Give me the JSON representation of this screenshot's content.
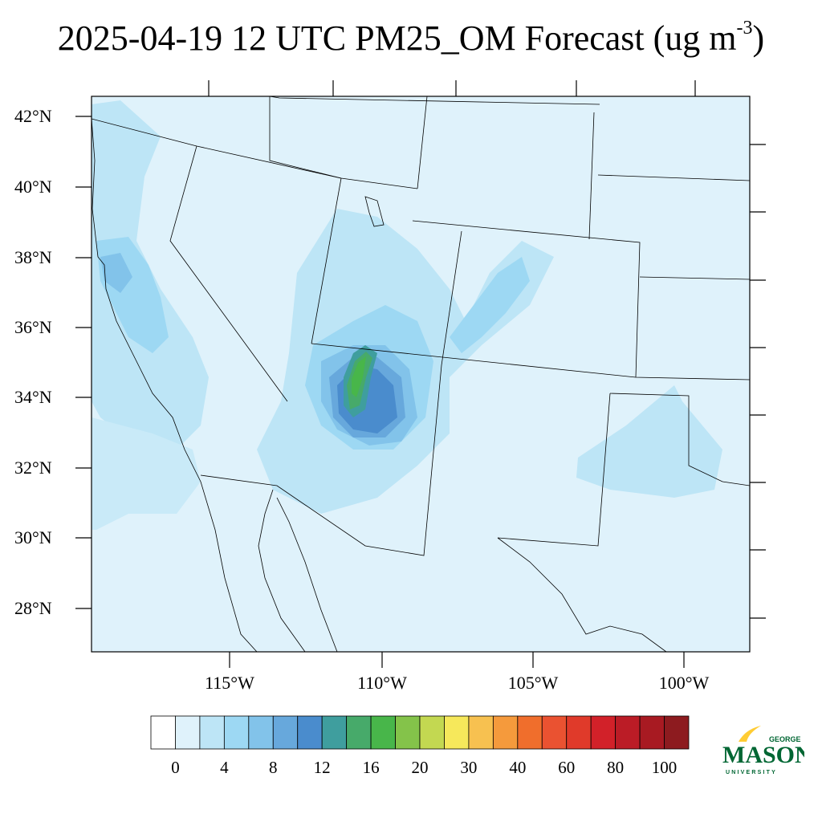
{
  "title": {
    "main": "2025-04-19 12 UTC PM25_OM Forecast (ug m",
    "sup": "-3",
    "close": ")"
  },
  "lat_labels": [
    "42°N",
    "40°N",
    "38°N",
    "36°N",
    "34°N",
    "32°N",
    "30°N",
    "28°N"
  ],
  "lon_labels": [
    "115°W",
    "110°W",
    "105°W",
    "100°W"
  ],
  "colorbar": {
    "labels": [
      "0",
      "4",
      "8",
      "12",
      "16",
      "20",
      "30",
      "40",
      "60",
      "80",
      "100"
    ],
    "colors": [
      "#ffffff",
      "#dff2fb",
      "#bde5f6",
      "#9dd8f3",
      "#82c3ea",
      "#67a8dc",
      "#4a8ccd",
      "#3f9e9e",
      "#47aa6a",
      "#48b64a",
      "#84c34a",
      "#c3d851",
      "#f6e85b",
      "#f7c150",
      "#f59a3c",
      "#f06e2c",
      "#ea5231",
      "#e03a2a",
      "#d22129",
      "#bb1c26",
      "#a81a22",
      "#8d1b1f"
    ]
  },
  "logo": {
    "top": "GEORGE",
    "main": "MASON",
    "bottom": "UNIVERSITY",
    "color": "#006633",
    "accent": "#ffcc33"
  },
  "map": {
    "background_color": "#dff2fb",
    "region": "Southwestern United States and northern Mexico"
  }
}
